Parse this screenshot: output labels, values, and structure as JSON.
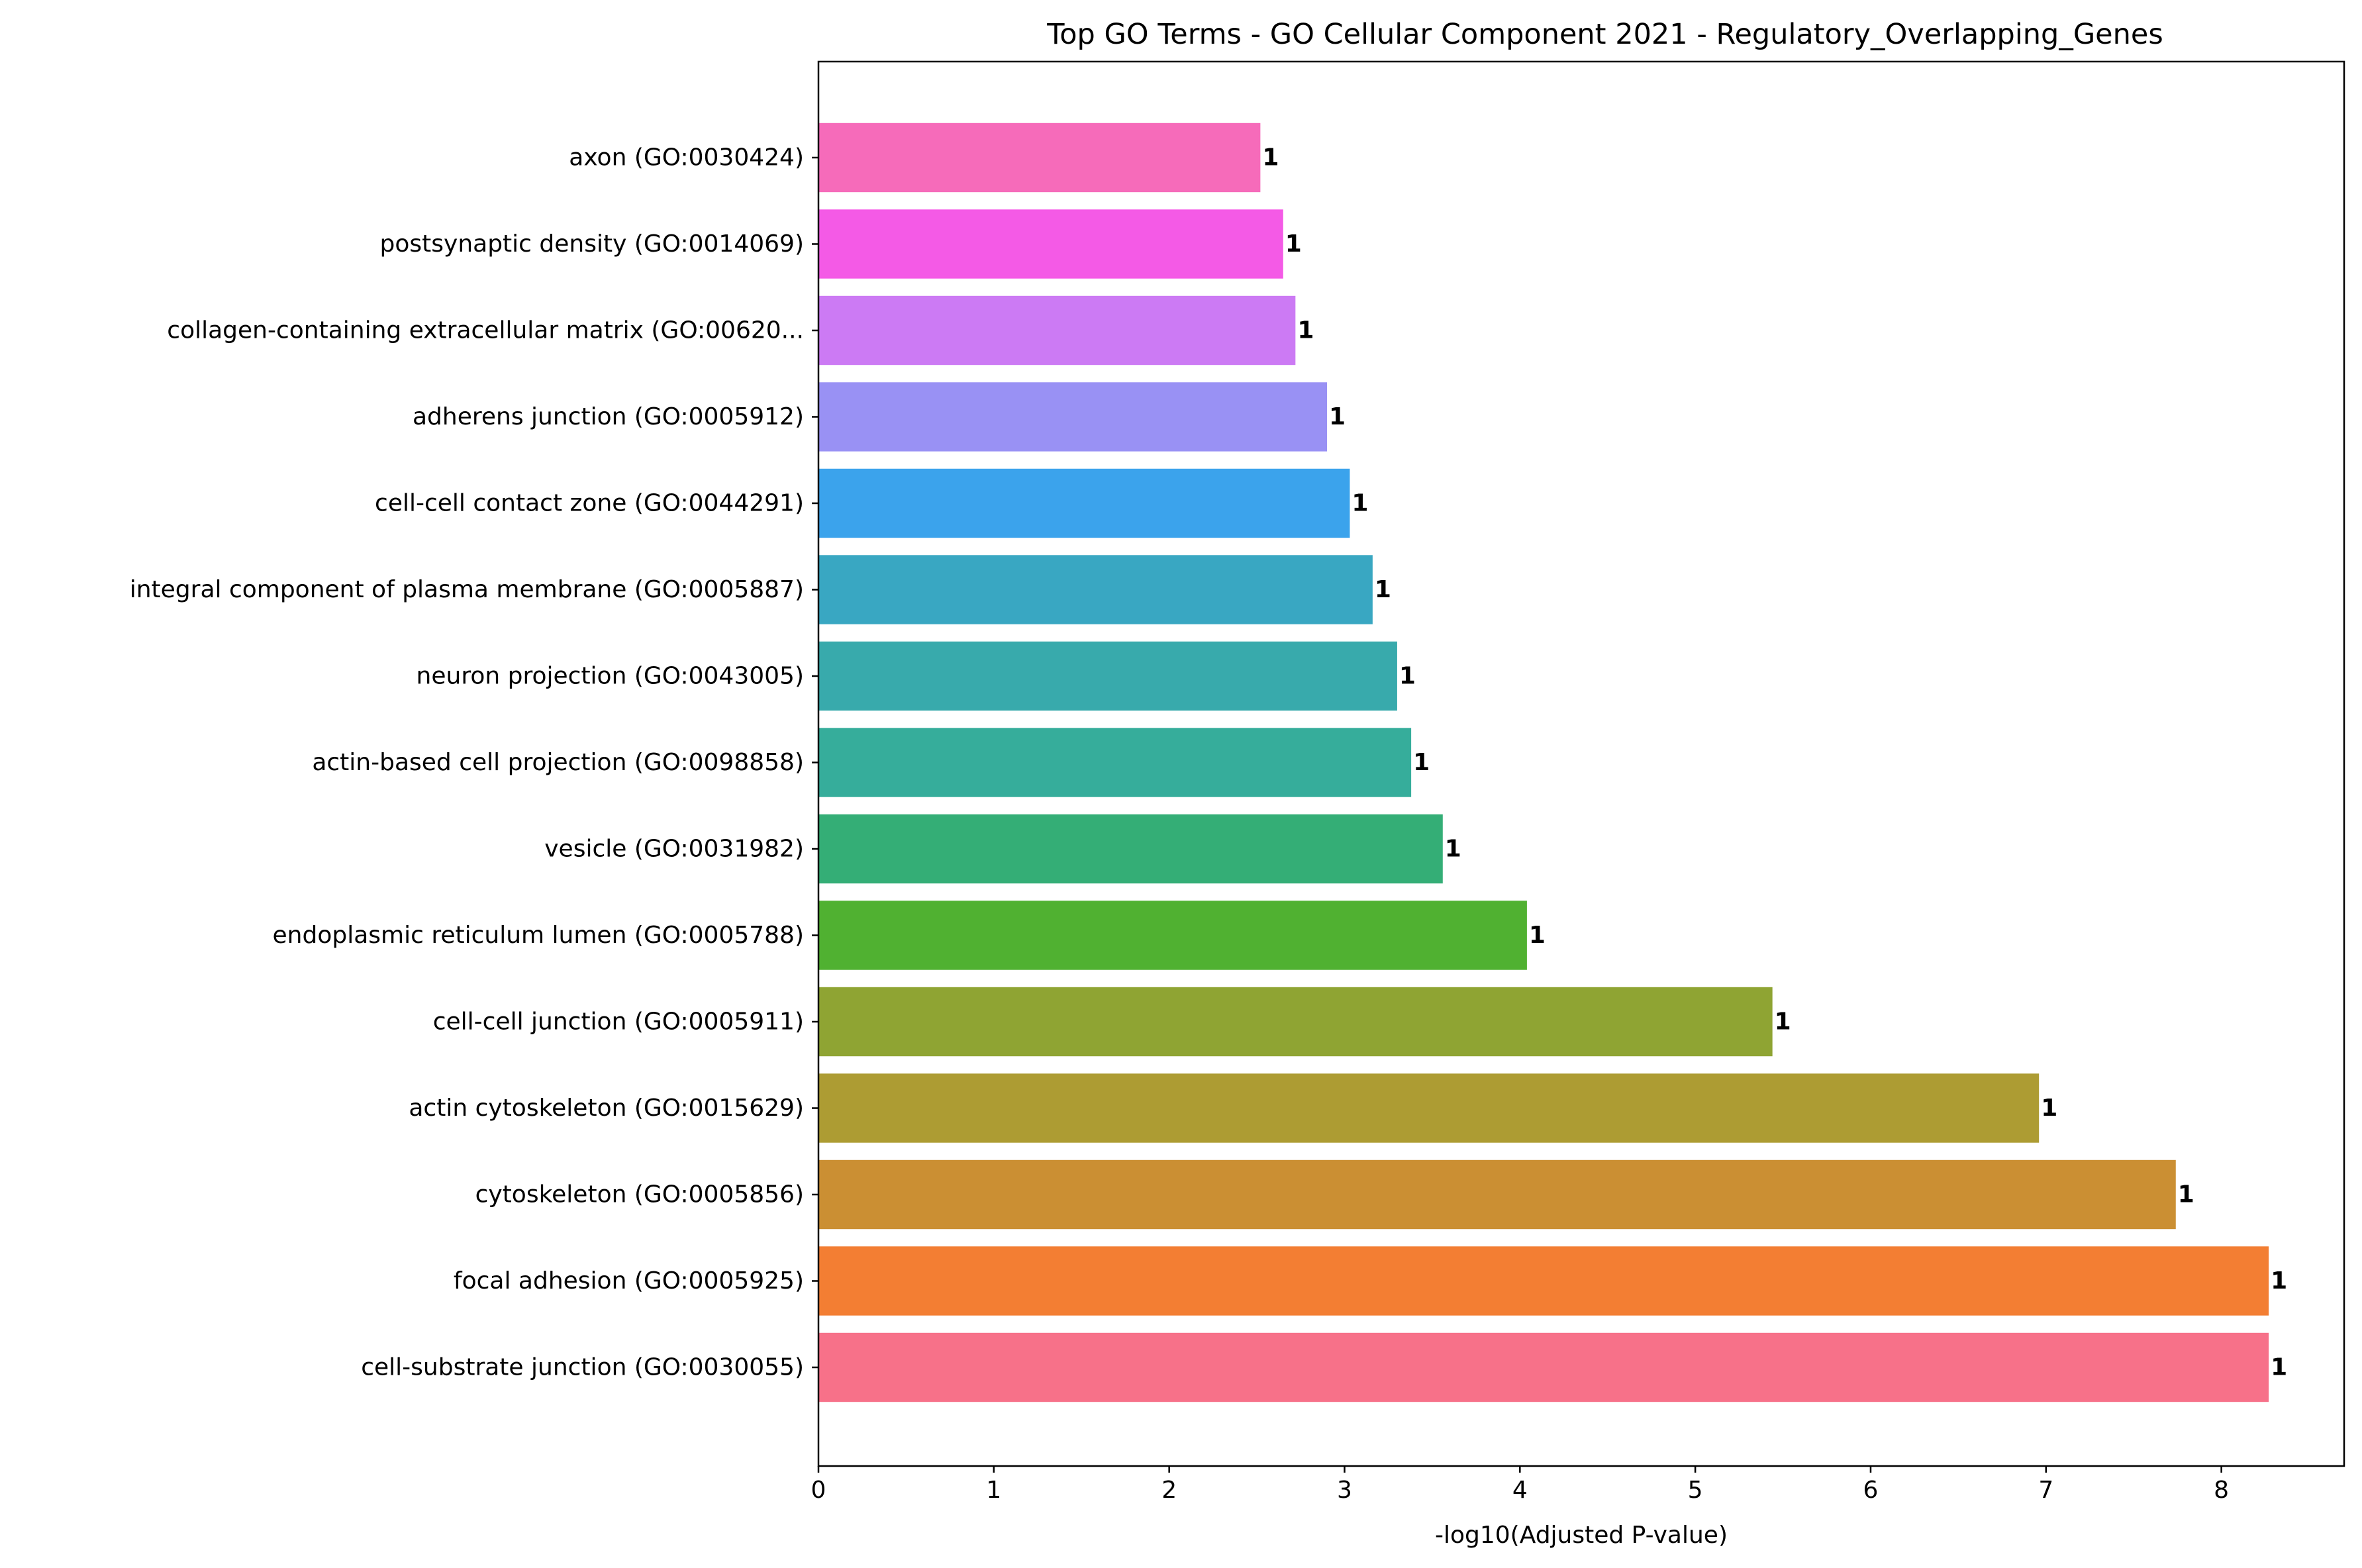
{
  "chart_data": {
    "type": "bar",
    "orientation": "horizontal",
    "title": "Top GO Terms - GO Cellular Component 2021 - Regulatory_Overlapping_Genes",
    "xlabel": "-log10(Adjusted P-value)",
    "ylabel": "",
    "xlim": [
      0,
      8.7
    ],
    "xticks": [
      "0",
      "1",
      "2",
      "3",
      "4",
      "5",
      "6",
      "7",
      "8"
    ],
    "grid": false,
    "categories": [
      "cell-substrate junction (GO:0030055)",
      "focal adhesion (GO:0005925)",
      "cytoskeleton (GO:0005856)",
      "actin cytoskeleton (GO:0015629)",
      "cell-cell junction (GO:0005911)",
      "endoplasmic reticulum lumen (GO:0005788)",
      "vesicle (GO:0031982)",
      "actin-based cell projection (GO:0098858)",
      "neuron projection (GO:0043005)",
      "integral component of plasma membrane (GO:0005887)",
      "cell-cell contact zone (GO:0044291)",
      "adherens junction (GO:0005912)",
      "collagen-containing extracellular matrix (GO:00620...",
      "postsynaptic density (GO:0014069)",
      "axon (GO:0030424)"
    ],
    "values": [
      8.27,
      8.27,
      7.74,
      6.96,
      5.44,
      4.04,
      3.56,
      3.38,
      3.3,
      3.16,
      3.03,
      2.9,
      2.72,
      2.65,
      2.52
    ],
    "labels": [
      "1",
      "1",
      "1",
      "1",
      "1",
      "1",
      "1",
      "1",
      "1",
      "1",
      "1",
      "1",
      "1",
      "1",
      "1"
    ],
    "colors": [
      "#f77189",
      "#f37e33",
      "#cb8f33",
      "#ad9c33",
      "#8fa433",
      "#50b131",
      "#34ae76",
      "#36ad9b",
      "#38aaac",
      "#39a7c2",
      "#3ba3ec",
      "#9991f4",
      "#cc7af4",
      "#f45ae6",
      "#f66bba"
    ]
  }
}
